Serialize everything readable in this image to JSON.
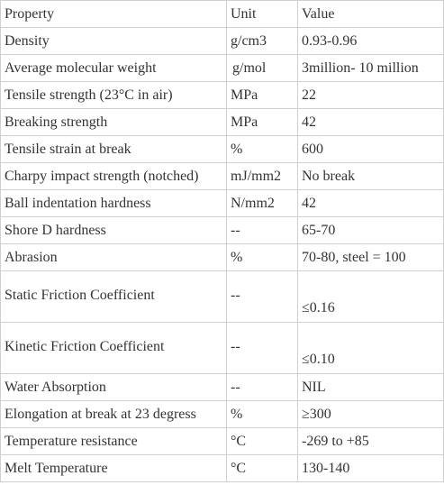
{
  "table": {
    "header": {
      "property": "Property",
      "unit": "Unit",
      "value": "Value"
    },
    "rows": [
      {
        "property": "Density",
        "unit": "g/cm3",
        "value": "0.93-0.96"
      },
      {
        "property": "Average molecular weight",
        "unit": " g/mol",
        "value": "3million- 10 million"
      },
      {
        "property": "Tensile strength (23°C in air)",
        "unit": "MPa",
        "value": "22"
      },
      {
        "property": "Breaking strength",
        "unit": "MPa",
        "value": "42"
      },
      {
        "property": "Tensile strain at break",
        "unit": "%",
        "value": "600"
      },
      {
        "property": "Charpy impact strength (notched)",
        "unit": "mJ/mm2",
        "value": "No break"
      },
      {
        "property": "Ball indentation hardness",
        "unit": "N/mm2",
        "value": "42"
      },
      {
        "property": "Shore D hardness",
        "unit": "--",
        "value": "65-70"
      },
      {
        "property": "Abrasion",
        "unit": "%",
        "value": "70-80, steel = 100"
      },
      {
        "property": "Static Friction Coefficient",
        "unit": "--",
        "value": "≤0.16"
      },
      {
        "property": "Kinetic Friction Coefficient",
        "unit": "--",
        "value": "≤0.10"
      },
      {
        "property": "Water Absorption",
        "unit": "--",
        "value": "NIL"
      },
      {
        "property": "Elongation at break at 23 degress",
        "unit": "%",
        "value": "≥300"
      },
      {
        "property": "Temperature resistance",
        "unit": "°C",
        "value": "-269 to +85"
      },
      {
        "property": "Melt Temperature",
        "unit": "°C",
        "value": "130-140"
      }
    ]
  }
}
